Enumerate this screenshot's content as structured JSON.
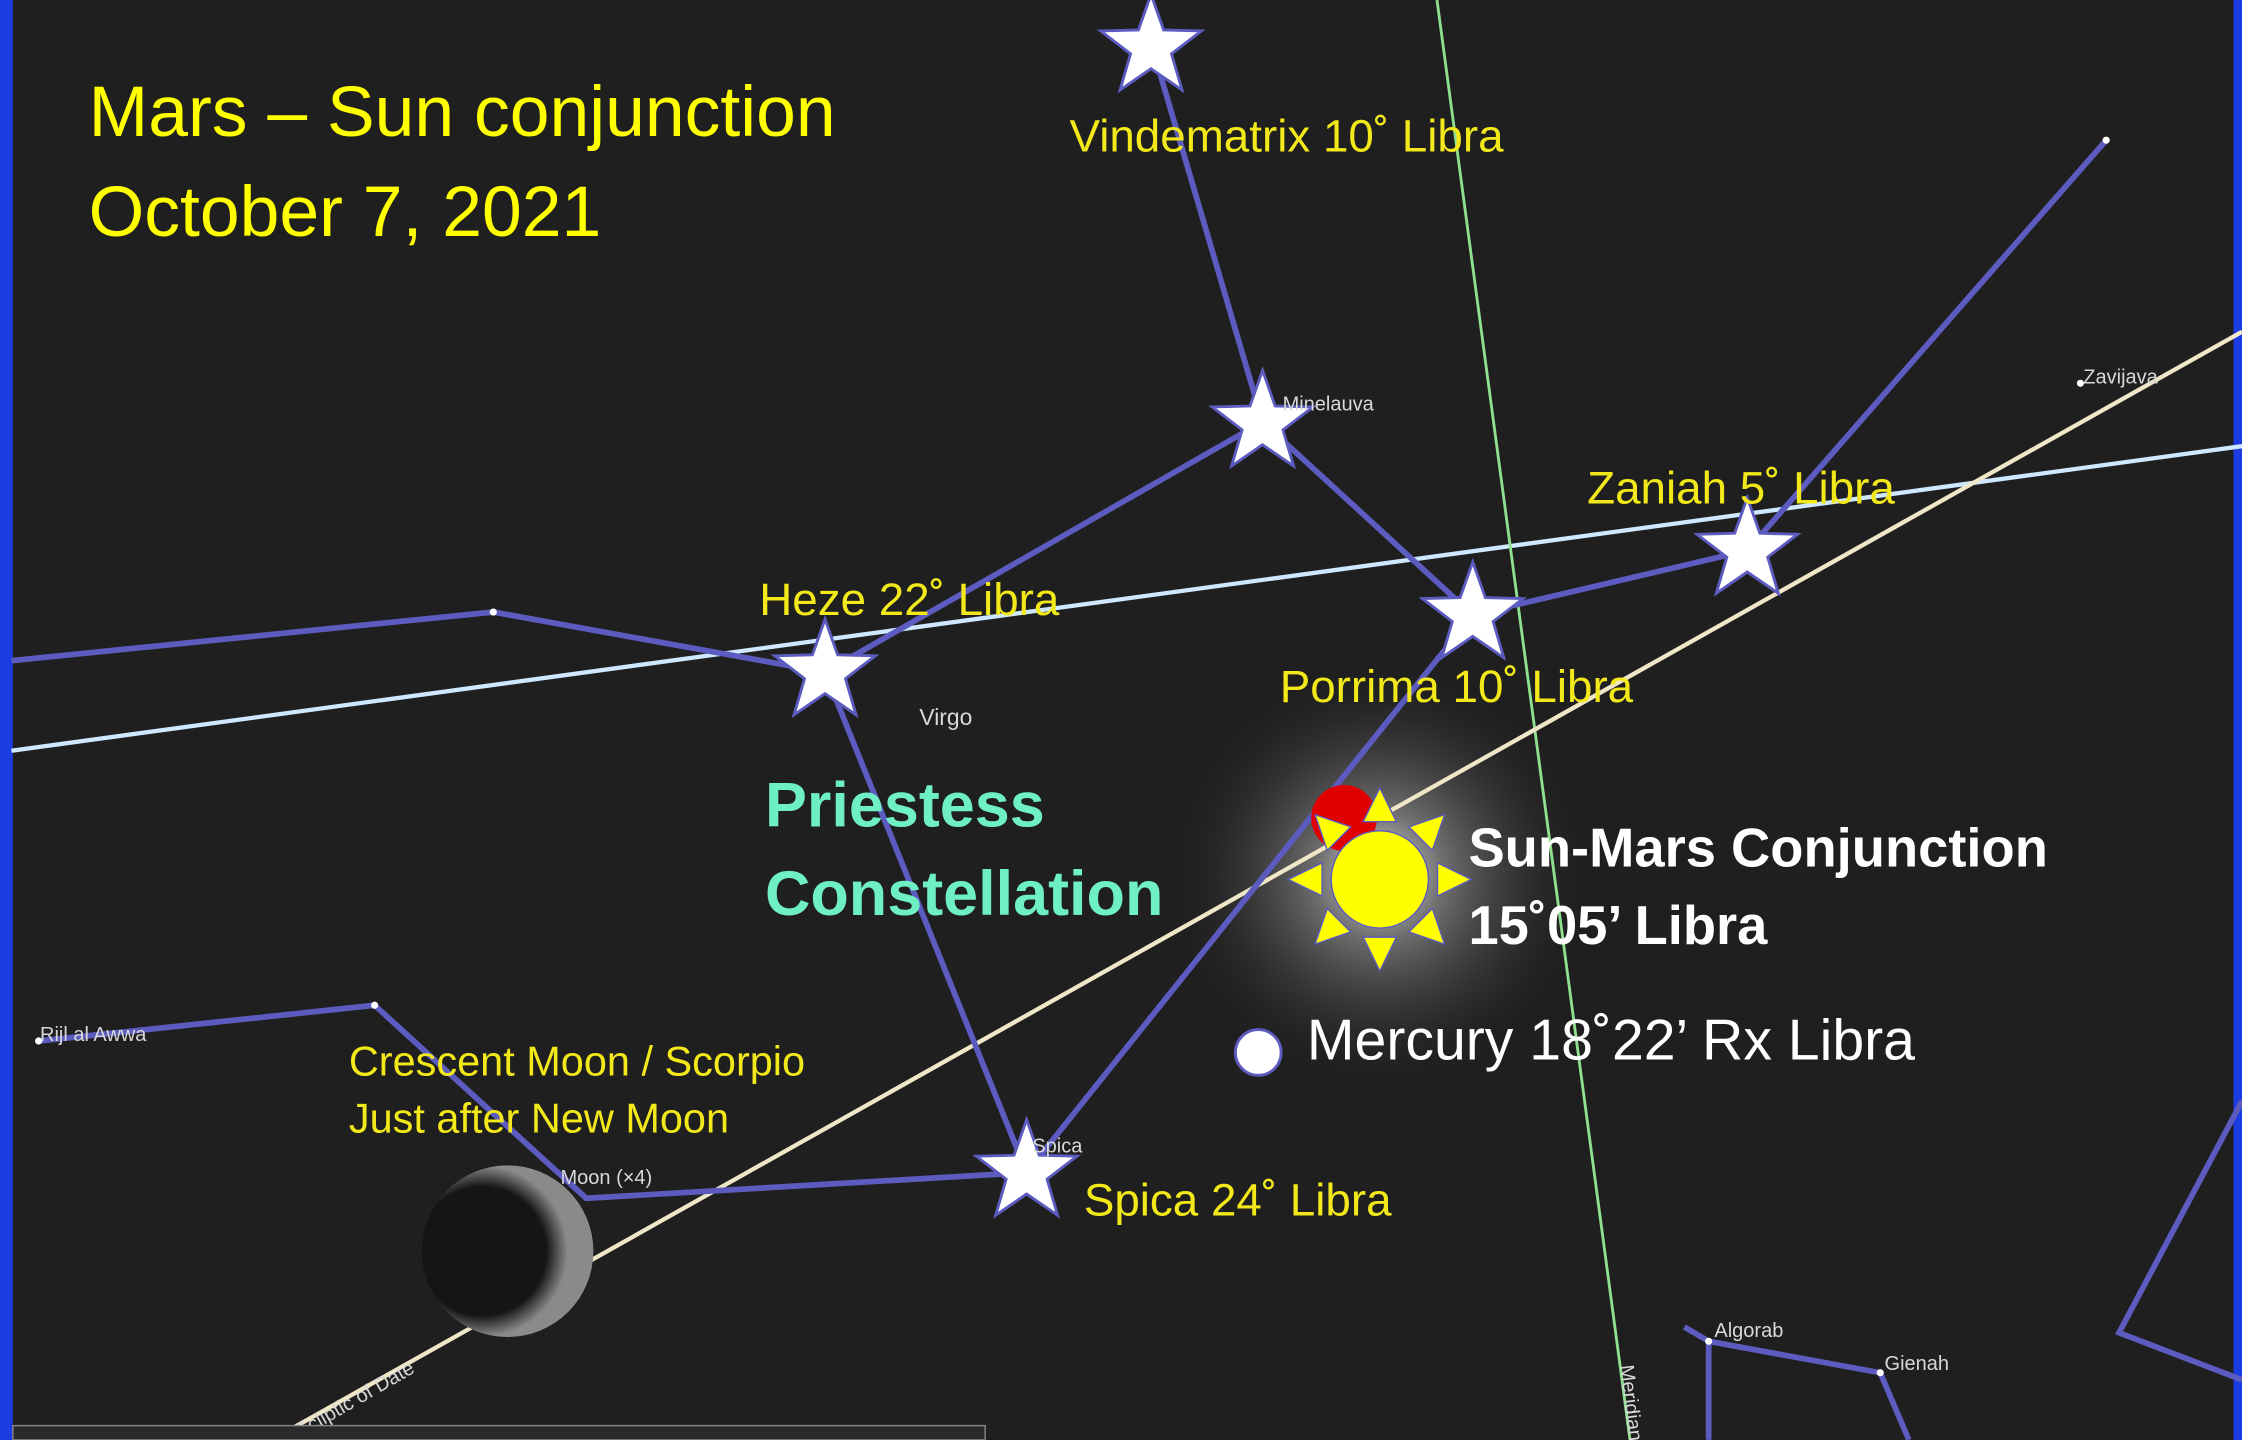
{
  "title": {
    "line1": "Mars – Sun conjunction",
    "line2": "October 7, 2021"
  },
  "annotations": {
    "vindematrix": "Vindematrix 10˚ Libra",
    "zaniah": "Zaniah 5˚ Libra",
    "heze": "Heze 22˚ Libra",
    "porrima": "Porrima 10˚ Libra",
    "constellation": [
      "Priestess",
      "Constellation"
    ],
    "conjunction": [
      "Sun-Mars Conjunction",
      "15˚05’ Libra"
    ],
    "mercury": "Mercury 18˚22’ Rx Libra",
    "moon": [
      "Crescent Moon  / Scorpio",
      "Just after New Moon"
    ],
    "spica": "Spica 24˚ Libra"
  },
  "sky_labels": {
    "minelauva": "Minelauva",
    "virgo": "Virgo",
    "zavijava": "Zavijava",
    "rijl": "Rijl al Awwa",
    "moon": "Moon (×4)",
    "spica": "Spica",
    "algorab": "Algorab",
    "gienah": "Gienah",
    "meridian": "Meridian",
    "ecliptic": "Ecliptic of Date"
  }
}
